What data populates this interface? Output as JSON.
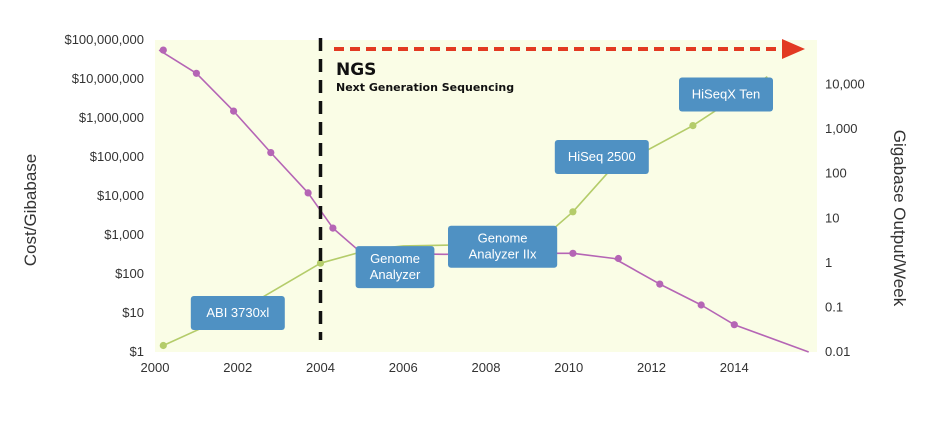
{
  "chart_data": {
    "type": "line",
    "title": "",
    "x": [
      2000,
      2001,
      2002,
      2003,
      2004,
      2005,
      2006,
      2007,
      2008,
      2009,
      2010,
      2011,
      2012,
      2013,
      2014,
      2015
    ],
    "xlim": [
      2000,
      2016
    ],
    "x_ticks": [
      "2000",
      "2002",
      "2004",
      "2006",
      "2008",
      "2010",
      "2012",
      "2014"
    ],
    "ylabel_left": "Cost/Gibabase",
    "ylabel_right": "Gigabase Output/Week",
    "y_left_scale": "log",
    "y_right_scale": "log",
    "y_left_lim": [
      1,
      100000000
    ],
    "y_right_lim": [
      0.01,
      100000
    ],
    "y_left_ticks": [
      "$100,000,000",
      "$10,000,000",
      "$1,000,000",
      "$100,000",
      "$10,000",
      "$1,000",
      "$100",
      "$10",
      "$1"
    ],
    "y_right_ticks": [
      "10,000",
      "1,000",
      "100",
      "10",
      "1",
      "0.1",
      "0.01"
    ],
    "grid": false,
    "series": [
      {
        "axis": "left",
        "color": "#b565b5",
        "points": [
          [
            2000.1,
            55000000
          ],
          [
            2001.0,
            14000000
          ],
          [
            2001.9,
            1500000
          ],
          [
            2002.8,
            130000
          ],
          [
            2003.7,
            12000
          ],
          [
            2004.3,
            1500
          ],
          [
            2005.0,
            340
          ],
          [
            2006.0,
            330
          ],
          [
            2007.0,
            320
          ],
          [
            2008.0,
            330
          ],
          [
            2009.0,
            340
          ],
          [
            2010.1,
            340
          ],
          [
            2011.1,
            250
          ],
          [
            2012.2,
            55
          ],
          [
            2013.2,
            16
          ],
          [
            2014.0,
            5
          ],
          [
            2015.8,
            1
          ]
        ],
        "markers": [
          [
            2000.2,
            55000000
          ],
          [
            2001.0,
            14000000
          ],
          [
            2001.9,
            1500000
          ],
          [
            2002.8,
            130000
          ],
          [
            2003.7,
            12000
          ],
          [
            2004.3,
            1500
          ],
          [
            2010.1,
            340
          ],
          [
            2011.2,
            250
          ],
          [
            2012.2,
            55
          ],
          [
            2013.2,
            16
          ],
          [
            2014.0,
            5
          ]
        ]
      },
      {
        "axis": "right",
        "color": "#b4cc6a",
        "points": [
          [
            2000.2,
            0.014
          ],
          [
            2002.0,
            0.08
          ],
          [
            2004.0,
            0.98
          ],
          [
            2005.2,
            2.0
          ],
          [
            2006.0,
            2.4
          ],
          [
            2008.0,
            2.6
          ],
          [
            2009.4,
            3.8
          ],
          [
            2010.1,
            14
          ],
          [
            2011.0,
            120
          ],
          [
            2013.0,
            1200
          ],
          [
            2014.8,
            15000
          ]
        ],
        "markers": [
          [
            2000.2,
            0.014
          ],
          [
            2004.0,
            0.98
          ],
          [
            2010.1,
            14
          ],
          [
            2011.0,
            120
          ],
          [
            2013.0,
            1200
          ]
        ]
      }
    ],
    "annotations": [
      {
        "text": "ABI 3730xl",
        "x": 2002.0,
        "y_left": 10
      },
      {
        "text": "Genome\nAnalyzer",
        "x": 2005.8,
        "y_left": 150
      },
      {
        "text": "Genome\nAnalyzer IIx",
        "x": 2008.4,
        "y_left": 500
      },
      {
        "text": "HiSeq 2500",
        "x": 2010.8,
        "y_left": 100000
      },
      {
        "text": "HiSeqX Ten",
        "x": 2013.8,
        "y_left": 4000000
      }
    ],
    "ngs": {
      "title": "NGS",
      "subtitle": "Next Generation Sequencing",
      "x": 2004,
      "arrow_color": "#e23a22"
    },
    "colors": {
      "plot_background": "#fafde6",
      "label_box": "#4f91c3"
    }
  }
}
